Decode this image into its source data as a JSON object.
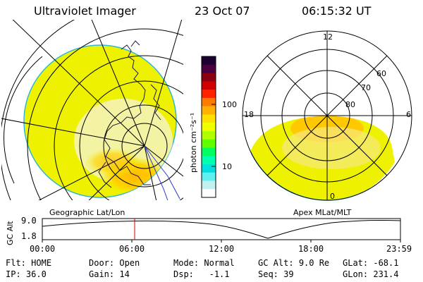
{
  "header": {
    "instrument": "Ultraviolet Imager",
    "date": "23 Oct 07",
    "time": "06:15:32 UT"
  },
  "colorbar": {
    "unit_label": "photon cm⁻²s⁻¹",
    "ticks": [
      "100",
      "10"
    ],
    "colors": [
      "#1b0030",
      "#4a0040",
      "#8a0010",
      "#d00000",
      "#ff2000",
      "#ff7a00",
      "#ffb000",
      "#ffe000",
      "#f0ff00",
      "#b0ff00",
      "#60ff00",
      "#00ff60",
      "#00ffb0",
      "#00e0e0",
      "#60f0f0",
      "#c0f0f0",
      "#ffffff"
    ]
  },
  "left_map": {
    "projection_label": "Geographic Lat/Lon",
    "disk_color": "#eef200"
  },
  "right_map": {
    "projection_label": "Apex MLat/MLT",
    "mlt_labels": [
      "12",
      "18",
      "6",
      "0"
    ],
    "mlat_labels": [
      "60",
      "70",
      "80"
    ]
  },
  "altitude_plot": {
    "ylabel": "GC Alt",
    "yticks": [
      "9.0",
      "1.8"
    ],
    "xticks": [
      "00:00",
      "06:00",
      "12:00",
      "18:00",
      "23:59"
    ],
    "cursor_color": "#cc0000"
  },
  "status": {
    "row1": [
      {
        "label": "Flt:",
        "value": "HOME"
      },
      {
        "label": "Door:",
        "value": "Open"
      },
      {
        "label": "Mode:",
        "value": "Normal"
      },
      {
        "label": "GC Alt:",
        "value": "9.0 Re"
      },
      {
        "label": "GLat:",
        "value": "-68.1"
      }
    ],
    "row2": [
      {
        "label": "IP:",
        "value": "36.0"
      },
      {
        "label": "Gain:",
        "value": "14"
      },
      {
        "label": "Dsp:",
        "value": "-1.1"
      },
      {
        "label": "Seq:",
        "value": "39"
      },
      {
        "label": "GLon:",
        "value": "231.4"
      }
    ]
  }
}
